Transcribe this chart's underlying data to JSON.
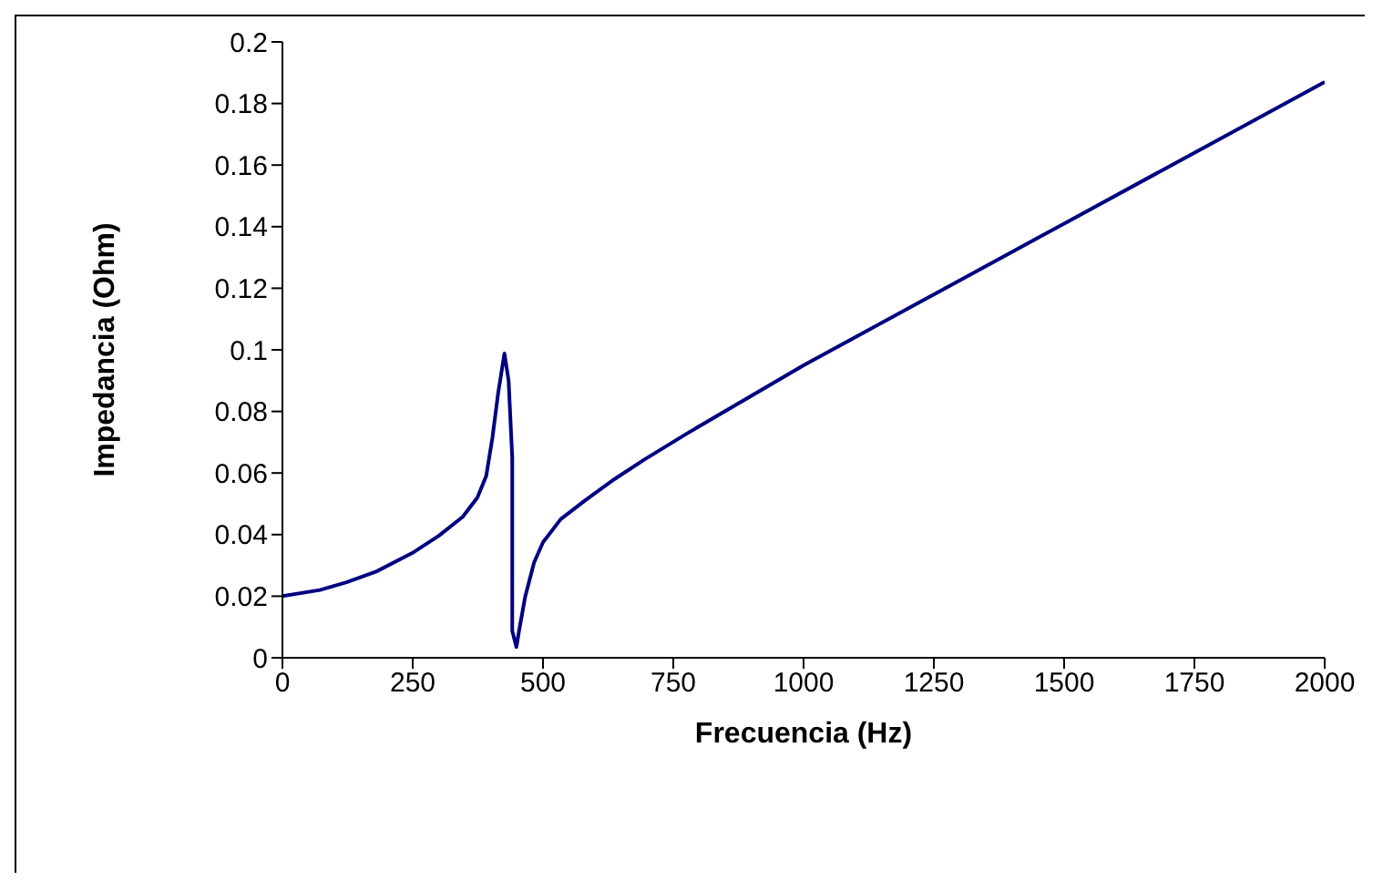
{
  "chart_data": {
    "type": "line",
    "xlabel": "Frecuencia (Hz)",
    "ylabel": "Impedancia (Ohm)",
    "xlim": [
      0,
      2000
    ],
    "xticks": [
      0,
      250,
      500,
      750,
      1000,
      1250,
      1500,
      1750,
      2000
    ],
    "ylim": [
      0,
      0.2
    ],
    "yticks": [
      0,
      0.02,
      0.04,
      0.06,
      0.08,
      0.1,
      0.12,
      0.14,
      0.16,
      0.18,
      0.2
    ],
    "grid": false,
    "legend": false,
    "marker": "none",
    "line_style": "solid",
    "series": [
      {
        "color": "#000080",
        "x": [
          0,
          72,
          123,
          180,
          249,
          300,
          346,
          374,
          391,
          403,
          414,
          426,
          434,
          441,
          441,
          449,
          454,
          466,
          483,
          500,
          534,
          580,
          637,
          694,
          774,
          1000,
          1250,
          1500,
          1750,
          2000
        ],
        "values": [
          0.02,
          0.022,
          0.0245,
          0.028,
          0.034,
          0.0396,
          0.0458,
          0.052,
          0.059,
          0.0715,
          0.086,
          0.0988,
          0.09,
          0.065,
          0.0087,
          0.0035,
          0.0087,
          0.02,
          0.031,
          0.0375,
          0.045,
          0.051,
          0.058,
          0.0643,
          0.0726,
          0.095,
          0.118,
          0.141,
          0.164,
          0.187
        ]
      }
    ]
  }
}
